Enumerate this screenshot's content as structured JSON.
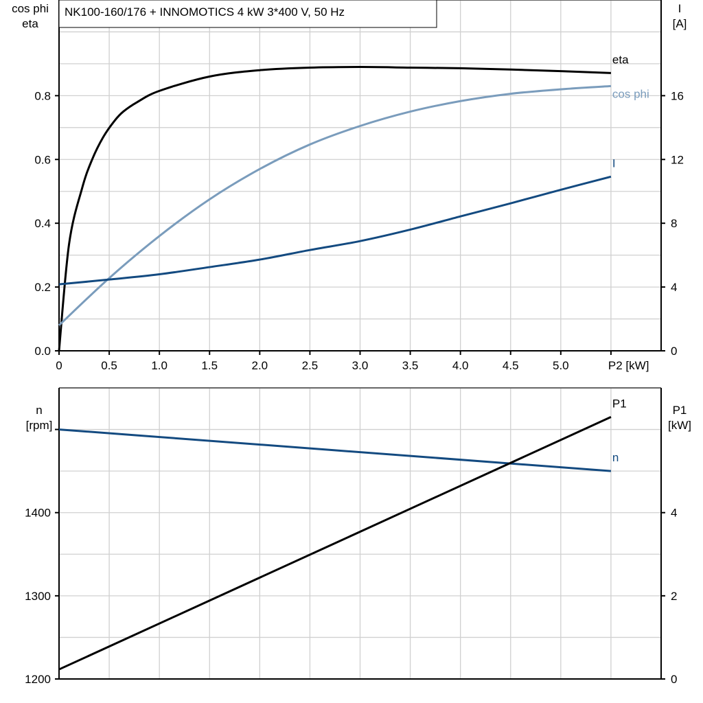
{
  "title": "NK100-160/176 + INNOMOTICS   4 kW   3*400 V, 50 Hz",
  "colors": {
    "eta": "#000000",
    "cos_phi": "#7a9cbc",
    "I": "#134a80",
    "n": "#134a80",
    "P1": "#000000",
    "grid": "#d0d0d0"
  },
  "chart_data": [
    {
      "type": "line",
      "xlabel": "P2 [kW]",
      "xlim": [
        0,
        6
      ],
      "xticks": [
        "0",
        "0.5",
        "1.0",
        "1.5",
        "2.0",
        "2.5",
        "3.0",
        "3.5",
        "4.0",
        "4.5",
        "5.0"
      ],
      "ylabel_left": [
        "cos phi",
        "eta"
      ],
      "ylim_left": [
        0,
        1.1
      ],
      "yticks_left": [
        "0.0",
        "0.2",
        "0.4",
        "0.6",
        "0.8"
      ],
      "ylabel_right": [
        "I",
        "[A]"
      ],
      "ylim_right": [
        0,
        22
      ],
      "yticks_right": [
        "0",
        "4",
        "8",
        "12",
        "16"
      ],
      "grid": true,
      "series": [
        {
          "name": "eta",
          "axis": "left",
          "color_key": "eta",
          "x": [
            0,
            0.1,
            0.23,
            0.33,
            0.44,
            0.55,
            0.64,
            0.78,
            1.0,
            1.5,
            2.0,
            2.5,
            3.0,
            3.5,
            4.0,
            4.5,
            5.0,
            5.5
          ],
          "y": [
            0,
            0.335,
            0.51,
            0.6,
            0.67,
            0.72,
            0.75,
            0.78,
            0.815,
            0.86,
            0.88,
            0.888,
            0.89,
            0.888,
            0.886,
            0.882,
            0.877,
            0.871
          ]
        },
        {
          "name": "cos phi",
          "axis": "left",
          "color_key": "cos_phi",
          "x": [
            0,
            0.5,
            1.0,
            1.5,
            2.0,
            2.5,
            3.0,
            3.5,
            4.0,
            4.5,
            5.0,
            5.5
          ],
          "y": [
            0.08,
            0.228,
            0.36,
            0.475,
            0.57,
            0.647,
            0.705,
            0.75,
            0.783,
            0.806,
            0.82,
            0.83
          ]
        },
        {
          "name": "I",
          "axis": "right",
          "color_key": "I",
          "x": [
            0,
            0.5,
            1.0,
            1.5,
            2.0,
            2.5,
            3.0,
            3.5,
            4.0,
            4.5,
            5.0,
            5.5
          ],
          "y": [
            4.17,
            4.47,
            4.8,
            5.25,
            5.72,
            6.32,
            6.88,
            7.6,
            8.43,
            9.25,
            10.1,
            10.92
          ]
        }
      ]
    },
    {
      "type": "line",
      "xlim": [
        0,
        6
      ],
      "ylabel_left": [
        "n",
        "[rpm]"
      ],
      "ylim_left": [
        1200,
        1550
      ],
      "yticks_left": [
        "1200",
        "1300",
        "1400"
      ],
      "ylabel_right": [
        "P1",
        "[kW]"
      ],
      "ylim_right": [
        0,
        7
      ],
      "yticks_right": [
        "0",
        "2",
        "4"
      ],
      "grid": true,
      "series": [
        {
          "name": "n",
          "axis": "left",
          "color_key": "n",
          "x": [
            0,
            5.5
          ],
          "y": [
            1500,
            1450
          ]
        },
        {
          "name": "P1",
          "axis": "right",
          "color_key": "P1",
          "x": [
            0,
            5.5
          ],
          "y": [
            0.23,
            6.3
          ]
        }
      ]
    }
  ]
}
